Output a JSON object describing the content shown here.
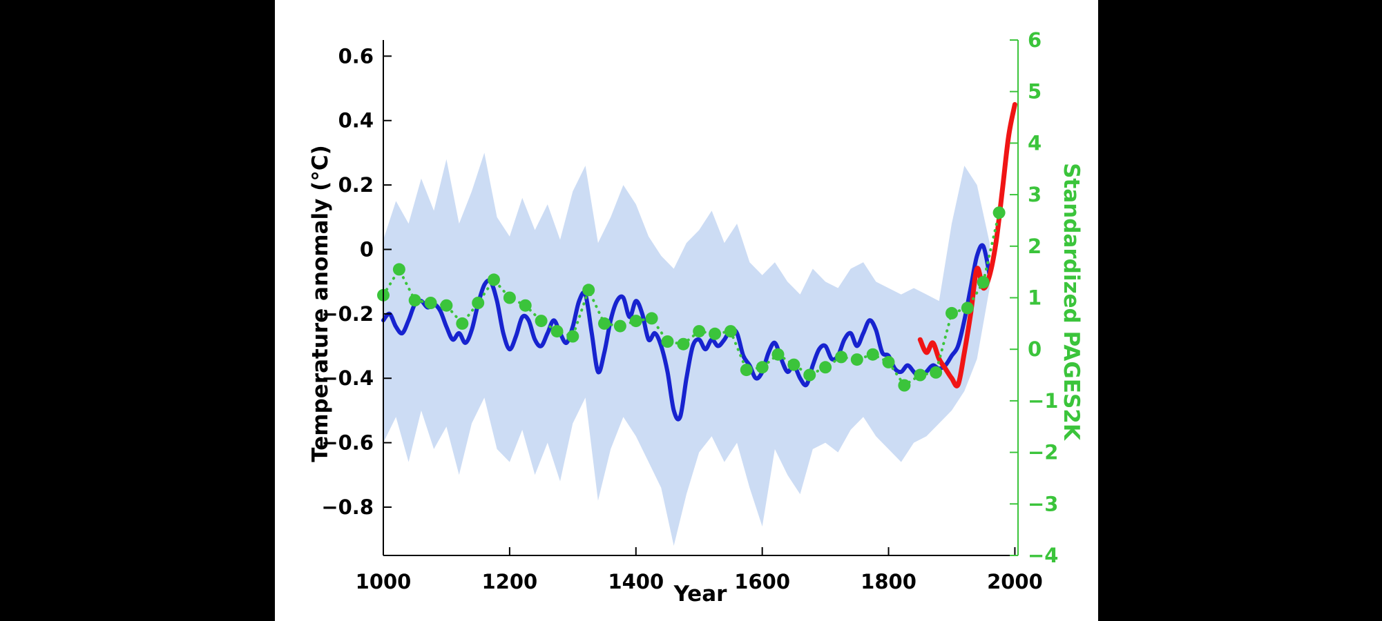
{
  "figure": {
    "background": "#000000",
    "panel_background": "#ffffff"
  },
  "chart_data": {
    "type": "line",
    "title": "",
    "xlabel": "Year",
    "ylabel_left": "Temperature anomaly (°C)",
    "ylabel_right": "Standardized PAGES2K",
    "grid": false,
    "legend": null,
    "xlim": [
      1000,
      2005
    ],
    "xticks": [
      1000,
      1200,
      1400,
      1600,
      1800,
      2000
    ],
    "xtick_labels": [
      "1000",
      "1200",
      "1400",
      "1600",
      "1800",
      "2000"
    ],
    "ylim_left": [
      -0.95,
      0.65
    ],
    "yticks_left": [
      0.6,
      0.4,
      0.2,
      0,
      -0.2,
      -0.4,
      -0.6,
      -0.8
    ],
    "ytick_labels_left": [
      "0.6",
      "0.4",
      "0.2",
      "0",
      "−0.2",
      "−0.4",
      "−0.6",
      "−0.8"
    ],
    "ylim_right": [
      -4,
      6
    ],
    "yticks_right": [
      6,
      5,
      4,
      3,
      2,
      1,
      0,
      -1,
      -2,
      -3,
      -4
    ],
    "ytick_labels_right": [
      "6",
      "5",
      "4",
      "3",
      "2",
      "1",
      "0",
      "−1",
      "−2",
      "−3",
      "−4"
    ],
    "axis_color_left": "#000000",
    "axis_color_right": "#3bc43b",
    "band": {
      "name": "reconstruction-uncertainty",
      "color": "#ccdcf4",
      "years": [
        1000,
        1020,
        1040,
        1060,
        1080,
        1100,
        1120,
        1140,
        1160,
        1180,
        1200,
        1220,
        1240,
        1260,
        1280,
        1300,
        1320,
        1340,
        1360,
        1380,
        1400,
        1420,
        1440,
        1460,
        1480,
        1500,
        1520,
        1540,
        1560,
        1580,
        1600,
        1620,
        1640,
        1660,
        1680,
        1700,
        1720,
        1740,
        1760,
        1780,
        1800,
        1820,
        1840,
        1860,
        1880,
        1900,
        1920,
        1940,
        1960
      ],
      "upper": [
        0.03,
        0.15,
        0.08,
        0.22,
        0.12,
        0.28,
        0.08,
        0.18,
        0.3,
        0.1,
        0.04,
        0.16,
        0.06,
        0.14,
        0.03,
        0.18,
        0.26,
        0.02,
        0.1,
        0.2,
        0.14,
        0.04,
        -0.02,
        -0.06,
        0.02,
        0.06,
        0.12,
        0.02,
        0.08,
        -0.04,
        -0.08,
        -0.04,
        -0.1,
        -0.14,
        -0.06,
        -0.1,
        -0.12,
        -0.06,
        -0.04,
        -0.1,
        -0.12,
        -0.14,
        -0.12,
        -0.14,
        -0.16,
        0.08,
        0.26,
        0.2,
        0.02
      ],
      "lower": [
        -0.6,
        -0.52,
        -0.66,
        -0.5,
        -0.62,
        -0.55,
        -0.7,
        -0.54,
        -0.46,
        -0.62,
        -0.66,
        -0.56,
        -0.7,
        -0.6,
        -0.72,
        -0.54,
        -0.46,
        -0.78,
        -0.62,
        -0.52,
        -0.58,
        -0.66,
        -0.74,
        -0.92,
        -0.76,
        -0.63,
        -0.58,
        -0.66,
        -0.6,
        -0.74,
        -0.86,
        -0.62,
        -0.7,
        -0.76,
        -0.62,
        -0.6,
        -0.63,
        -0.56,
        -0.52,
        -0.58,
        -0.62,
        -0.66,
        -0.6,
        -0.58,
        -0.54,
        -0.5,
        -0.44,
        -0.34,
        -0.12
      ]
    },
    "series": [
      {
        "name": "temperature-reconstruction",
        "axis": "left",
        "color": "#1723cf",
        "style": "solid",
        "width": 6,
        "years": [
          1000,
          1010,
          1020,
          1030,
          1040,
          1050,
          1060,
          1070,
          1080,
          1090,
          1100,
          1110,
          1120,
          1130,
          1140,
          1150,
          1160,
          1170,
          1180,
          1190,
          1200,
          1210,
          1220,
          1230,
          1240,
          1250,
          1260,
          1270,
          1280,
          1290,
          1300,
          1310,
          1320,
          1330,
          1340,
          1350,
          1360,
          1370,
          1380,
          1390,
          1400,
          1410,
          1420,
          1430,
          1440,
          1450,
          1460,
          1470,
          1480,
          1490,
          1500,
          1510,
          1520,
          1530,
          1540,
          1550,
          1560,
          1570,
          1580,
          1590,
          1600,
          1610,
          1620,
          1630,
          1640,
          1650,
          1660,
          1670,
          1680,
          1690,
          1700,
          1710,
          1720,
          1730,
          1740,
          1750,
          1760,
          1770,
          1780,
          1790,
          1800,
          1810,
          1820,
          1830,
          1840,
          1850,
          1860,
          1870,
          1880,
          1890,
          1900,
          1910,
          1920,
          1930,
          1940,
          1950,
          1960
        ],
        "values": [
          -0.22,
          -0.2,
          -0.24,
          -0.26,
          -0.22,
          -0.17,
          -0.16,
          -0.18,
          -0.17,
          -0.19,
          -0.24,
          -0.28,
          -0.26,
          -0.29,
          -0.25,
          -0.17,
          -0.11,
          -0.1,
          -0.16,
          -0.26,
          -0.31,
          -0.27,
          -0.21,
          -0.22,
          -0.28,
          -0.3,
          -0.26,
          -0.22,
          -0.26,
          -0.29,
          -0.24,
          -0.16,
          -0.14,
          -0.26,
          -0.38,
          -0.32,
          -0.22,
          -0.16,
          -0.15,
          -0.21,
          -0.16,
          -0.2,
          -0.28,
          -0.26,
          -0.3,
          -0.38,
          -0.5,
          -0.52,
          -0.4,
          -0.3,
          -0.28,
          -0.31,
          -0.28,
          -0.3,
          -0.28,
          -0.25,
          -0.26,
          -0.33,
          -0.36,
          -0.4,
          -0.38,
          -0.32,
          -0.29,
          -0.34,
          -0.38,
          -0.36,
          -0.4,
          -0.42,
          -0.36,
          -0.31,
          -0.3,
          -0.34,
          -0.33,
          -0.28,
          -0.26,
          -0.3,
          -0.26,
          -0.22,
          -0.25,
          -0.32,
          -0.33,
          -0.37,
          -0.38,
          -0.36,
          -0.38,
          -0.4,
          -0.38,
          -0.36,
          -0.37,
          -0.36,
          -0.33,
          -0.3,
          -0.22,
          -0.12,
          -0.02,
          0.01,
          -0.08
        ]
      },
      {
        "name": "instrumental-temperature",
        "axis": "left",
        "color": "#f01515",
        "style": "solid",
        "width": 7,
        "years": [
          1850,
          1860,
          1870,
          1880,
          1890,
          1900,
          1910,
          1920,
          1930,
          1940,
          1950,
          1960,
          1970,
          1980,
          1990,
          2000
        ],
        "values": [
          -0.28,
          -0.32,
          -0.29,
          -0.34,
          -0.37,
          -0.4,
          -0.42,
          -0.32,
          -0.2,
          -0.06,
          -0.12,
          -0.08,
          0.02,
          0.18,
          0.35,
          0.45
        ]
      },
      {
        "name": "pages2k-standardized",
        "axis": "right",
        "color": "#3bc43b",
        "style": "dotted",
        "width": 4,
        "marker": "circle",
        "marker_radius": 9,
        "years": [
          1000,
          1025,
          1050,
          1075,
          1100,
          1125,
          1150,
          1175,
          1200,
          1225,
          1250,
          1275,
          1300,
          1325,
          1350,
          1375,
          1400,
          1425,
          1450,
          1475,
          1500,
          1525,
          1550,
          1575,
          1600,
          1625,
          1650,
          1675,
          1700,
          1725,
          1750,
          1775,
          1800,
          1825,
          1850,
          1875,
          1900,
          1925,
          1950,
          1975
        ],
        "values": [
          1.05,
          1.55,
          0.95,
          0.9,
          0.85,
          0.5,
          0.9,
          1.35,
          1.0,
          0.85,
          0.55,
          0.35,
          0.25,
          1.15,
          0.5,
          0.45,
          0.55,
          0.6,
          0.15,
          0.1,
          0.35,
          0.3,
          0.35,
          -0.4,
          -0.35,
          -0.1,
          -0.3,
          -0.5,
          -0.35,
          -0.15,
          -0.2,
          -0.1,
          -0.25,
          -0.7,
          -0.5,
          -0.45,
          0.7,
          0.8,
          1.3,
          2.65
        ]
      }
    ]
  }
}
